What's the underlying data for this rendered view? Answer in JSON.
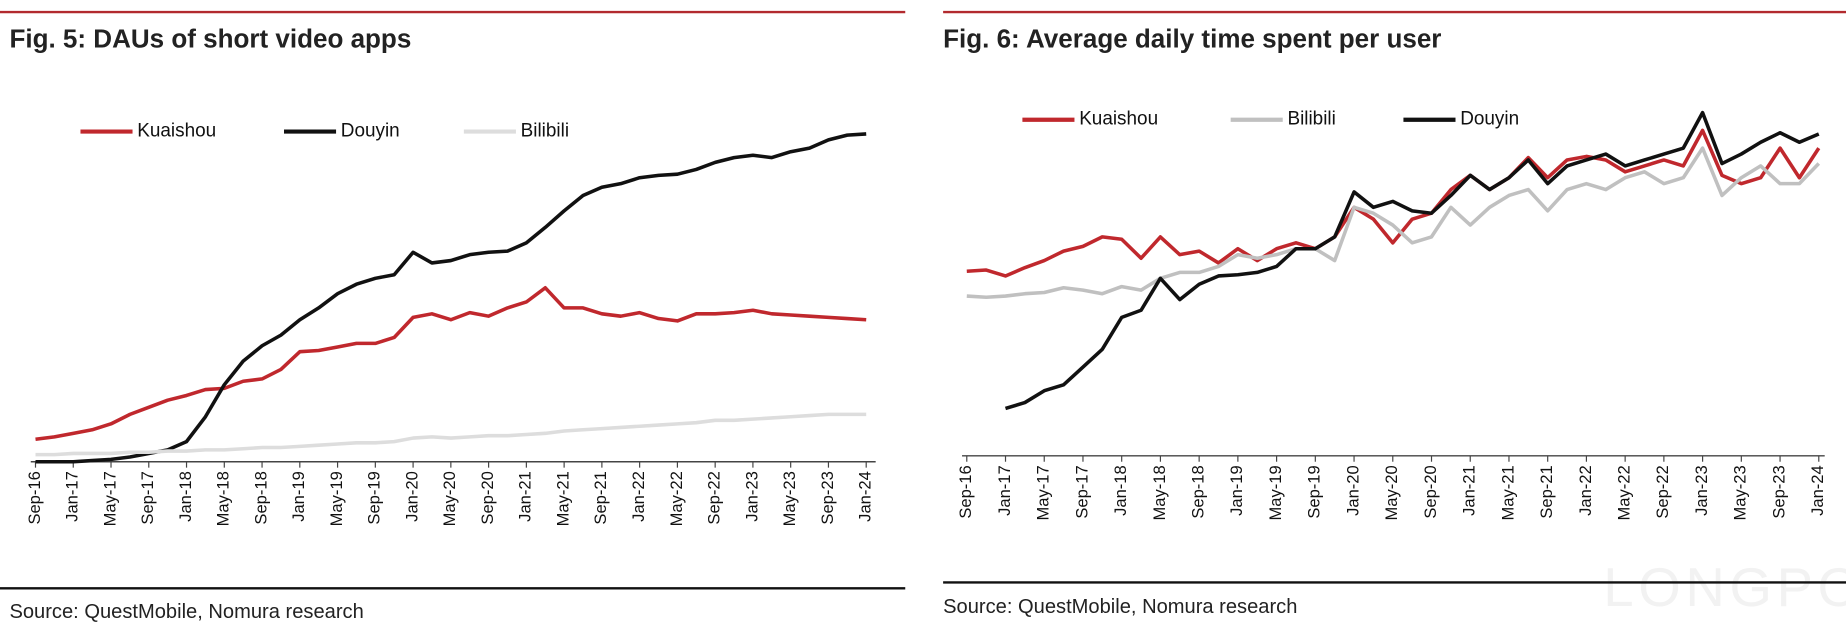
{
  "watermark": "LONGPORT",
  "chart_data": [
    {
      "type": "line",
      "title": "Fig. 5: DAUs of short video apps",
      "source": "Source: QuestMobile, Nomura research",
      "categories": [
        "Sep-16",
        null,
        "Jan-17",
        null,
        "May-17",
        null,
        "Sep-17",
        null,
        "Jan-18",
        null,
        "May-18",
        null,
        "Sep-18",
        null,
        "Jan-19",
        null,
        "May-19",
        null,
        "Sep-19",
        null,
        "Jan-20",
        null,
        "May-20",
        null,
        "Sep-20",
        null,
        "Jan-21",
        null,
        "May-21",
        null,
        "Sep-21",
        null,
        "Jan-22",
        null,
        "May-22",
        null,
        "Sep-22",
        null,
        "Jan-23",
        null,
        "May-23",
        null,
        "Sep-23",
        null,
        "Jan-24"
      ],
      "ylim": [
        0,
        290
      ],
      "series": [
        {
          "name": "Kuaishou",
          "color": "#c0282d",
          "values": [
            19,
            21,
            24,
            27,
            32,
            40,
            46,
            52,
            56,
            61,
            62,
            68,
            70,
            78,
            93,
            94,
            97,
            100,
            100,
            105,
            122,
            125,
            120,
            126,
            123,
            130,
            135,
            147,
            130,
            130,
            125,
            123,
            126,
            121,
            119,
            125,
            125,
            126,
            128,
            125,
            124,
            123,
            122,
            121,
            120
          ]
        },
        {
          "name": "Douyin",
          "color": "#111111",
          "values": [
            0,
            0,
            0,
            1,
            2,
            4,
            7,
            10,
            17,
            38,
            65,
            85,
            98,
            107,
            120,
            130,
            142,
            150,
            155,
            158,
            177,
            168,
            170,
            175,
            177,
            178,
            185,
            198,
            212,
            225,
            232,
            235,
            240,
            242,
            243,
            247,
            253,
            257,
            259,
            257,
            262,
            265,
            272,
            276,
            277
          ]
        },
        {
          "name": "Bilibili",
          "color": "#dddddd",
          "values": [
            6,
            6,
            7,
            7,
            7,
            8,
            8,
            9,
            9,
            10,
            10,
            11,
            12,
            12,
            13,
            14,
            15,
            16,
            16,
            17,
            20,
            21,
            20,
            21,
            22,
            22,
            23,
            24,
            26,
            27,
            28,
            29,
            30,
            31,
            32,
            33,
            35,
            35,
            36,
            37,
            38,
            39,
            40,
            40,
            40
          ]
        }
      ]
    },
    {
      "type": "line",
      "title": "Fig. 6: Average daily time spent per user",
      "source": "Source: QuestMobile, Nomura research",
      "categories": [
        "Sep-16",
        null,
        "Jan-17",
        null,
        "May-17",
        null,
        "Sep-17",
        null,
        "Jan-18",
        null,
        "May-18",
        null,
        "Sep-18",
        null,
        "Jan-19",
        null,
        "May-19",
        null,
        "Sep-19",
        null,
        "Jan-20",
        null,
        "May-20",
        null,
        "Sep-20",
        null,
        "Jan-21",
        null,
        "May-21",
        null,
        "Sep-21",
        null,
        "Jan-22",
        null,
        "May-22",
        null,
        "Sep-22",
        null,
        "Jan-23",
        null,
        "May-23",
        null,
        "Sep-23",
        null,
        "Jan-24"
      ],
      "ylim": [
        0,
        300
      ],
      "series": [
        {
          "name": "Kuaishou",
          "color": "#c0282d",
          "values": [
            156,
            157,
            152,
            159,
            165,
            173,
            177,
            185,
            183,
            167,
            185,
            170,
            173,
            163,
            175,
            165,
            175,
            180,
            175,
            185,
            210,
            200,
            180,
            200,
            205,
            225,
            237,
            225,
            235,
            252,
            235,
            250,
            253,
            250,
            240,
            245,
            250,
            245,
            275,
            237,
            230,
            235,
            260,
            235,
            260
          ]
        },
        {
          "name": "Bilibili",
          "color": "#c0c0c0",
          "values": [
            135,
            134,
            135,
            137,
            138,
            142,
            140,
            137,
            143,
            140,
            150,
            155,
            155,
            160,
            170,
            167,
            170,
            175,
            175,
            165,
            210,
            205,
            195,
            180,
            185,
            210,
            195,
            210,
            220,
            225,
            207,
            225,
            230,
            225,
            235,
            240,
            230,
            235,
            260,
            220,
            235,
            245,
            230,
            230,
            247
          ]
        },
        {
          "name": "Douyin",
          "color": "#111111",
          "values": [
            null,
            null,
            40,
            45,
            55,
            60,
            75,
            90,
            117,
            123,
            150,
            132,
            145,
            152,
            153,
            155,
            160,
            175,
            175,
            185,
            223,
            210,
            215,
            207,
            205,
            220,
            237,
            225,
            235,
            250,
            230,
            245,
            250,
            255,
            245,
            250,
            255,
            260,
            290,
            247,
            255,
            265,
            273,
            265,
            272
          ]
        }
      ]
    }
  ]
}
